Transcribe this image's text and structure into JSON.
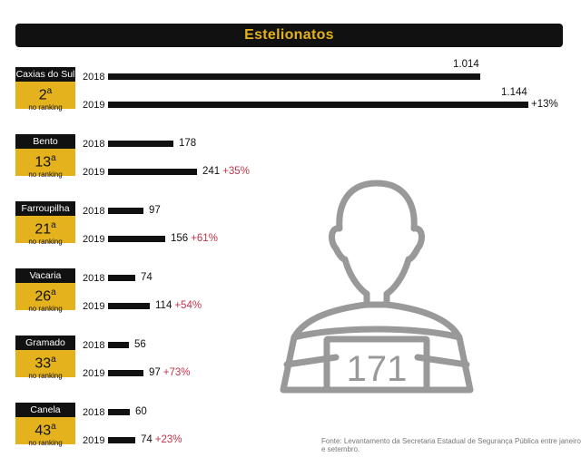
{
  "title": "Estelionatos",
  "source": "Fonte: Levantamento da Secretaria Estadual de Segurança Pública entre janeiro e setembro.",
  "badge_number": "171",
  "colors": {
    "gold": "#e3b21c",
    "black": "#111111",
    "accent": "#c0344a",
    "icon_gray": "#999999"
  },
  "chart_data": {
    "type": "bar",
    "orientation": "horizontal",
    "title": "Estelionatos",
    "years": [
      "2018",
      "2019"
    ],
    "cities": [
      {
        "name": "Caxias do Sul",
        "rank": "2",
        "rank_suffix": "a",
        "rank_label": "no ranking",
        "values": [
          1014,
          1144
        ],
        "labels": [
          "1.014",
          "1.144"
        ],
        "change": "+13%"
      },
      {
        "name": "Bento",
        "rank": "13",
        "rank_suffix": "a",
        "rank_label": "no ranking",
        "values": [
          178,
          241
        ],
        "labels": [
          "178",
          "241"
        ],
        "change": "+35%"
      },
      {
        "name": "Farroupilha",
        "rank": "21",
        "rank_suffix": "a",
        "rank_label": "no ranking",
        "values": [
          97,
          156
        ],
        "labels": [
          "97",
          "156"
        ],
        "change": "+61%"
      },
      {
        "name": "Vacaria",
        "rank": "26",
        "rank_suffix": "a",
        "rank_label": "no ranking",
        "values": [
          74,
          114
        ],
        "labels": [
          "74",
          "114"
        ],
        "change": "+54%"
      },
      {
        "name": "Gramado",
        "rank": "33",
        "rank_suffix": "a",
        "rank_label": "no ranking",
        "values": [
          56,
          97
        ],
        "labels": [
          "56",
          "97"
        ],
        "change": "+73%"
      },
      {
        "name": "Canela",
        "rank": "43",
        "rank_suffix": "a",
        "rank_label": "no ranking",
        "values": [
          60,
          74
        ],
        "labels": [
          "60",
          "74"
        ],
        "change": "+23%"
      }
    ]
  }
}
